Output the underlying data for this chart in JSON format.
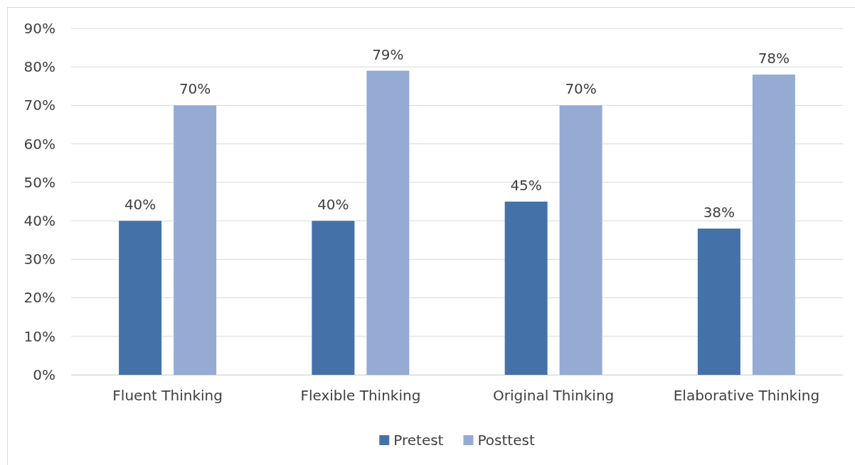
{
  "chart_data": {
    "type": "bar",
    "categories": [
      "Fluent Thinking",
      "Flexible Thinking",
      "Original Thinking",
      "Elaborative Thinking"
    ],
    "series": [
      {
        "name": "Pretest",
        "color": "#4472a8",
        "values": [
          40,
          40,
          45,
          38
        ],
        "value_labels": [
          "40%",
          "40%",
          "45%",
          "38%"
        ]
      },
      {
        "name": "Posttest",
        "color": "#95abd3",
        "values": [
          70,
          79,
          70,
          78
        ],
        "value_labels": [
          "70%",
          "79%",
          "70%",
          "78%"
        ]
      }
    ],
    "ylim": [
      0,
      90
    ],
    "yticks": [
      {
        "value": 0,
        "label": "0%"
      },
      {
        "value": 10,
        "label": "10%"
      },
      {
        "value": 20,
        "label": "20%"
      },
      {
        "value": 30,
        "label": "30%"
      },
      {
        "value": 40,
        "label": "40%"
      },
      {
        "value": 50,
        "label": "50%"
      },
      {
        "value": 60,
        "label": "60%"
      },
      {
        "value": 70,
        "label": "70%"
      },
      {
        "value": 80,
        "label": "80%"
      },
      {
        "value": 90,
        "label": "90%"
      }
    ],
    "grid": "y",
    "legend": "bottom"
  }
}
